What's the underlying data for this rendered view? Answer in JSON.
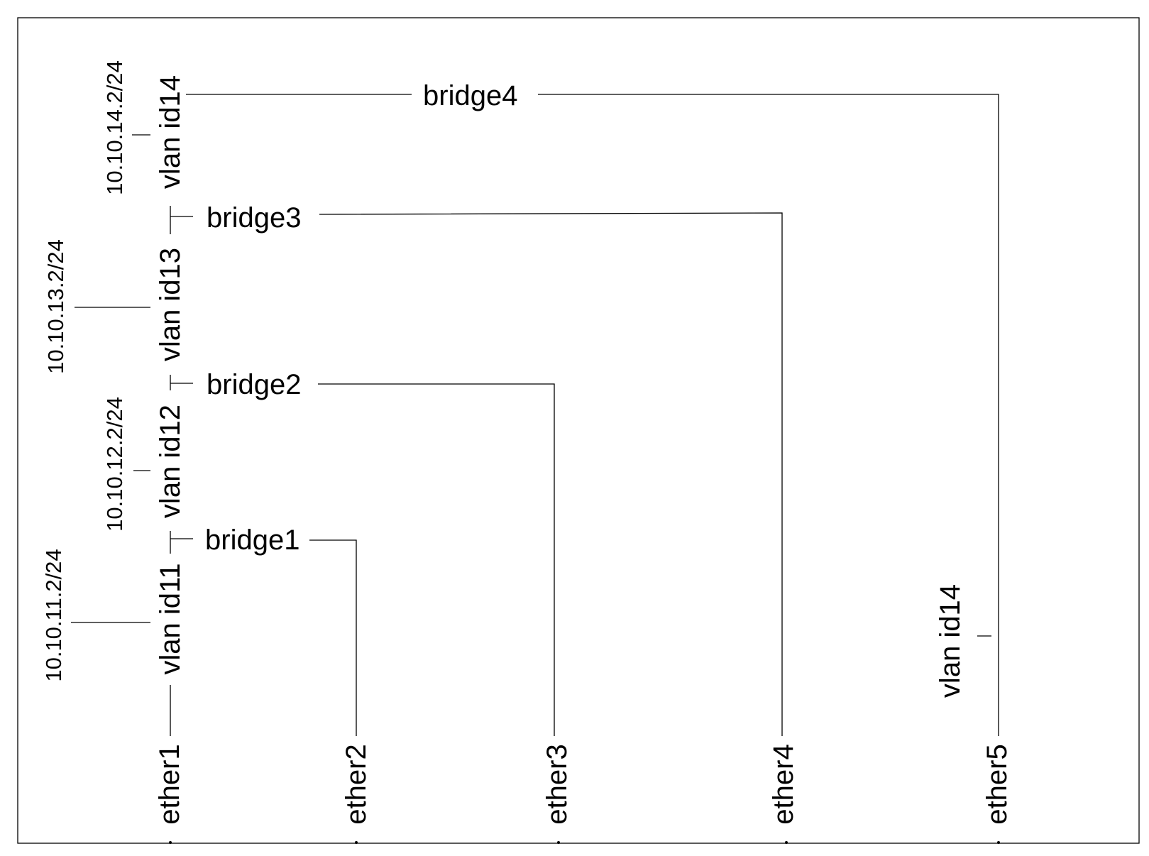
{
  "ports": [
    "ether1",
    "ether2",
    "ether3",
    "ether4",
    "ether5"
  ],
  "bridges": [
    "bridge1",
    "bridge2",
    "bridge3",
    "bridge4"
  ],
  "vlans": [
    "vlan id11",
    "vlan id12",
    "vlan id13",
    "vlan id14"
  ],
  "vlan_ether5": "vlan id14",
  "addresses": [
    "10.10.11.2/24",
    "10.10.12.2/24",
    "10.10.13.2/24",
    "10.10.14.2/24"
  ]
}
